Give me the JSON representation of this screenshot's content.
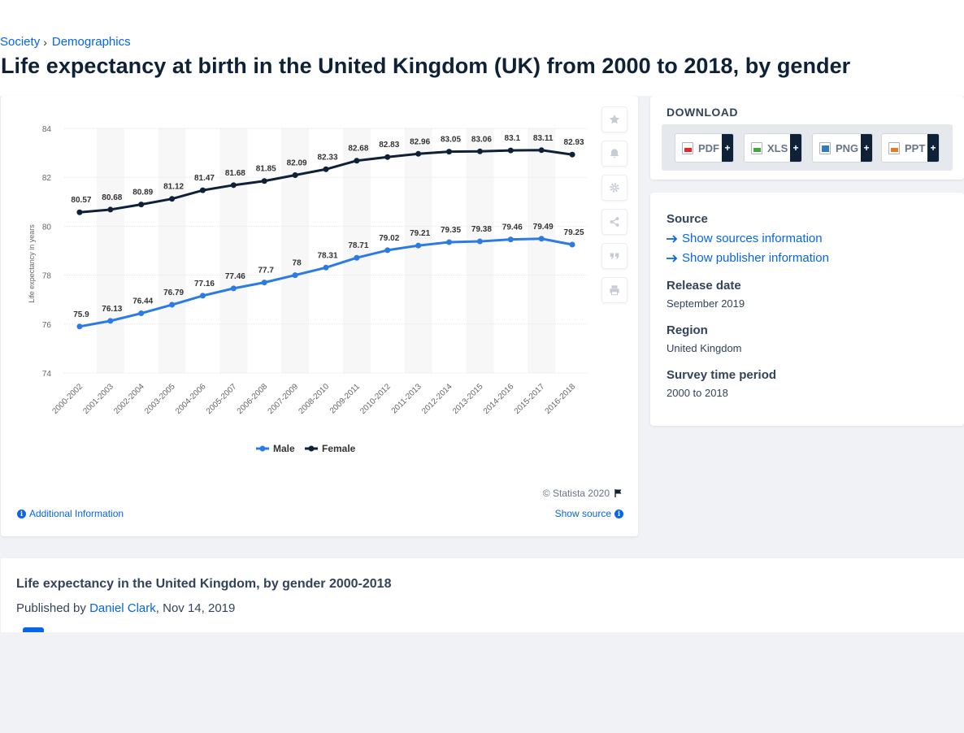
{
  "breadcrumb": {
    "items": [
      "Society",
      "Demographics"
    ],
    "separator": "›"
  },
  "page_title": "Life expectancy at birth in the United Kingdom (UK) from 2000 to 2018, by gender",
  "chart": {
    "copyright": "© Statista 2020",
    "additional_info": "Additional Information",
    "show_source": "Show source"
  },
  "chart_data": {
    "type": "line",
    "title": "",
    "xlabel": "",
    "ylabel": "Life expectancy in years",
    "categories": [
      "2000-2002",
      "2001-2003",
      "2002-2004",
      "2003-2005",
      "2004-2006",
      "2005-2007",
      "2006-2008",
      "2007-2009",
      "2008-2010",
      "2009-2011",
      "2010-2012",
      "2011-2013",
      "2012-2014",
      "2013-2015",
      "2014-2016",
      "2015-2017",
      "2016-2018"
    ],
    "series": [
      {
        "name": "Male",
        "color": "#2c7be5",
        "values": [
          75.9,
          76.13,
          76.44,
          76.79,
          77.16,
          77.46,
          77.7,
          78,
          78.31,
          78.71,
          79.02,
          79.21,
          79.35,
          79.38,
          79.46,
          79.49,
          79.25
        ]
      },
      {
        "name": "Female",
        "color": "#0f2137",
        "values": [
          80.57,
          80.68,
          80.89,
          81.12,
          81.47,
          81.68,
          81.85,
          82.09,
          82.33,
          82.68,
          82.83,
          82.96,
          83.05,
          83.06,
          83.1,
          83.11,
          82.93
        ]
      }
    ],
    "ylim": [
      74,
      84
    ],
    "yticks": [
      74,
      76,
      78,
      80,
      82,
      84
    ],
    "grid": true,
    "legend_position": "bottom"
  },
  "toolbar": {
    "icons": [
      "star-icon",
      "bell-icon",
      "gear-icon",
      "share-icon",
      "quote-icon",
      "print-icon"
    ]
  },
  "download": {
    "title": "DOWNLOAD",
    "buttons": [
      {
        "label": "PDF",
        "icon": "pdf-icon",
        "color": "#e5252a"
      },
      {
        "label": "XLS",
        "icon": "xls-icon",
        "color": "#3fa73f"
      },
      {
        "label": "PNG",
        "icon": "png-icon",
        "color": "#2f7bbf"
      },
      {
        "label": "PPT",
        "icon": "ppt-icon",
        "color": "#e07b26"
      }
    ],
    "plus": "+"
  },
  "meta": {
    "source_label": "Source",
    "show_sources": "Show sources information",
    "show_publisher": "Show publisher information",
    "release_label": "Release date",
    "release_value": "September 2019",
    "region_label": "Region",
    "region_value": "United Kingdom",
    "survey_label": "Survey time period",
    "survey_value": "2000 to 2018"
  },
  "related": {
    "title": "Life expectancy in the United Kingdom, by gender 2000-2018",
    "published_prefix": "Published by",
    "author": "Daniel Clark",
    "date": ", Nov 14, 2019"
  }
}
